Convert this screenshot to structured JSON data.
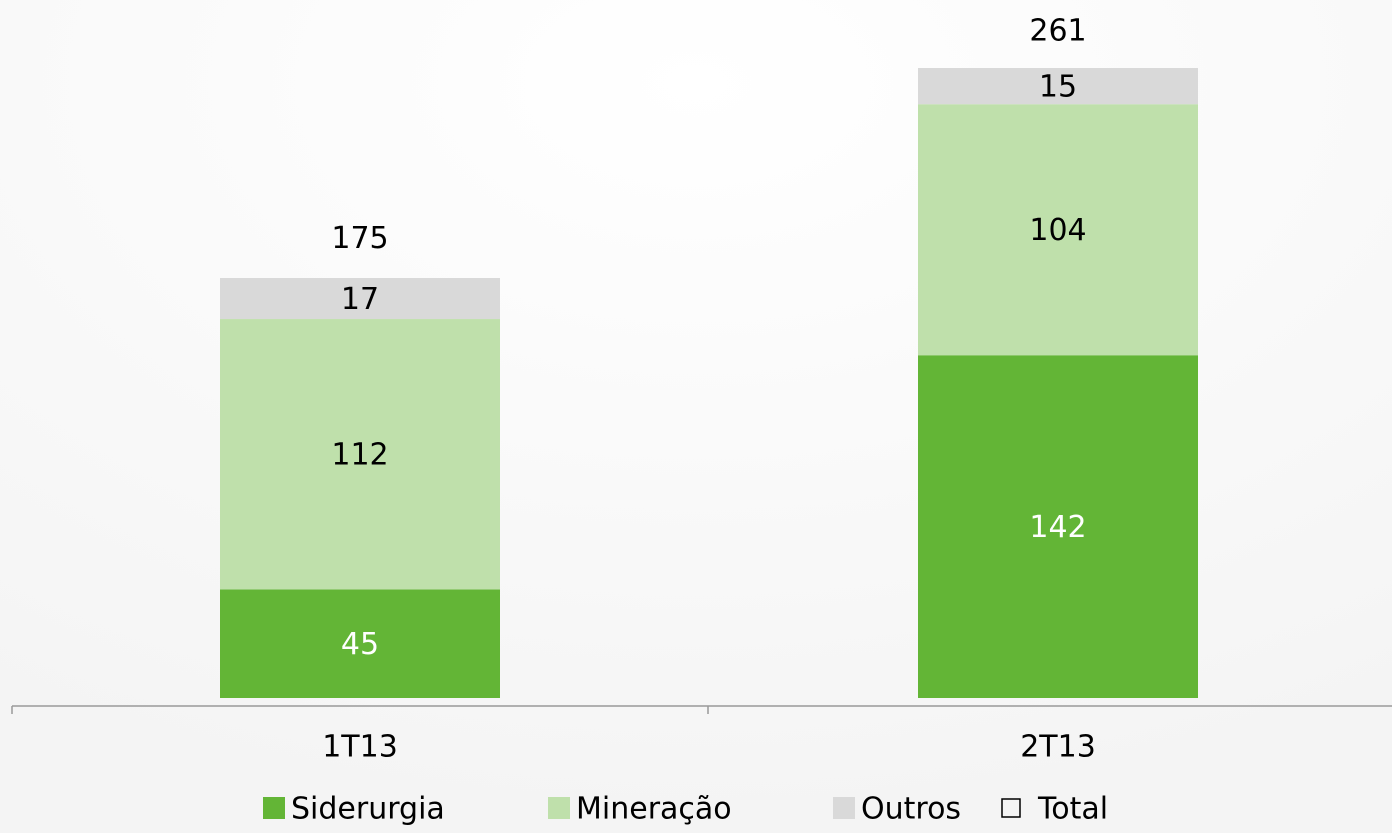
{
  "chart_data": {
    "type": "stacked-bar",
    "categories": [
      "1T13",
      "2T13"
    ],
    "series": [
      {
        "name": "Siderurgia",
        "color": "#63b536",
        "values": [
          45,
          142
        ]
      },
      {
        "name": "Mineração",
        "color": "#bfe0ab",
        "values": [
          112,
          104
        ]
      },
      {
        "name": "Outros",
        "color": "#d9d9d9",
        "values": [
          17,
          15
        ]
      }
    ],
    "totals": {
      "name": "Total",
      "values": [
        175,
        261
      ]
    },
    "legend": "bottom"
  }
}
